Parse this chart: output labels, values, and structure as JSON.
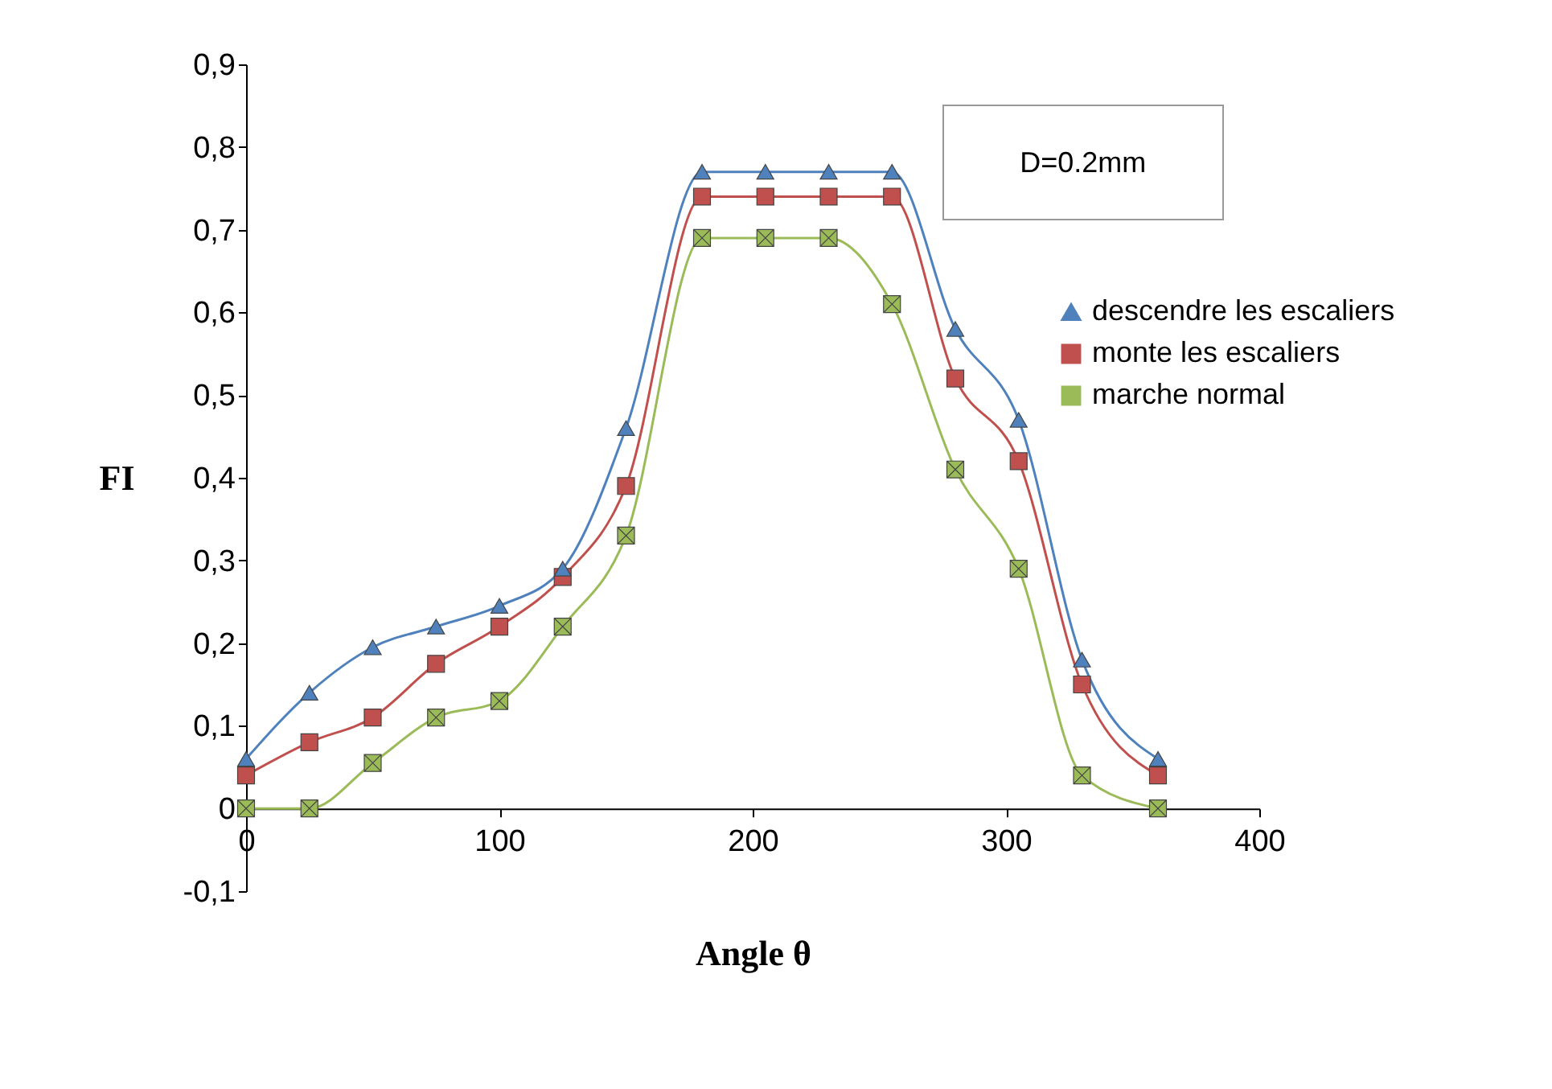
{
  "chart_data": {
    "type": "line",
    "xlabel": "Angle θ",
    "ylabel": "FI",
    "annotations": [
      "D=0.2mm"
    ],
    "x": [
      0,
      25,
      50,
      75,
      100,
      125,
      150,
      180,
      205,
      230,
      255,
      280,
      305,
      330,
      360
    ],
    "xlim": [
      0,
      400
    ],
    "xticks": [
      0,
      100,
      200,
      300,
      400
    ],
    "ylim": [
      -0.1,
      0.9
    ],
    "yticks": [
      {
        "value": -0.1,
        "label": "-0,1"
      },
      {
        "value": 0,
        "label": "0"
      },
      {
        "value": 0.1,
        "label": "0,1"
      },
      {
        "value": 0.2,
        "label": "0,2"
      },
      {
        "value": 0.3,
        "label": "0,3"
      },
      {
        "value": 0.4,
        "label": "0,4"
      },
      {
        "value": 0.5,
        "label": "0,5"
      },
      {
        "value": 0.6,
        "label": "0,6"
      },
      {
        "value": 0.7,
        "label": "0,7"
      },
      {
        "value": 0.8,
        "label": "0,8"
      },
      {
        "value": 0.9,
        "label": "0,9"
      }
    ],
    "legend": "right",
    "grid": false,
    "series": [
      {
        "name": "descendre les escaliers",
        "color": "#4f81bd",
        "marker": "triangle",
        "values": [
          0.06,
          0.14,
          0.195,
          0.22,
          0.245,
          0.29,
          0.46,
          0.77,
          0.77,
          0.77,
          0.77,
          0.58,
          0.47,
          0.18,
          0.06
        ]
      },
      {
        "name": "monte les escaliers",
        "color": "#c0504d",
        "marker": "square",
        "values": [
          0.04,
          0.08,
          0.11,
          0.175,
          0.22,
          0.28,
          0.39,
          0.74,
          0.74,
          0.74,
          0.74,
          0.52,
          0.42,
          0.15,
          0.04
        ]
      },
      {
        "name": "marche normal",
        "color": "#9bbb59",
        "marker": "cross",
        "values": [
          0,
          0,
          0.055,
          0.11,
          0.13,
          0.22,
          0.33,
          0.69,
          0.69,
          0.69,
          0.61,
          0.41,
          0.29,
          0.04,
          0
        ]
      }
    ]
  }
}
